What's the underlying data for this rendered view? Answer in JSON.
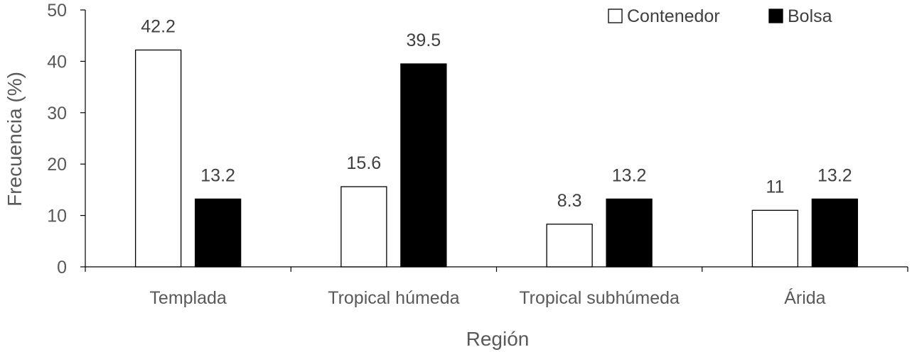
{
  "chart_data": {
    "type": "bar",
    "title": "",
    "xlabel": "Región",
    "ylabel": "Frecuencia (%)",
    "ylim": [
      0,
      50
    ],
    "yticks": [
      0,
      10,
      20,
      30,
      40,
      50
    ],
    "grid": false,
    "legend_position": "top-right",
    "categories": [
      "Templada",
      "Tropical húmeda",
      "Tropical subhúmeda",
      "Árida"
    ],
    "series": [
      {
        "name": "Contenedor",
        "values": [
          42.2,
          15.6,
          8.3,
          11
        ],
        "labels": [
          "42.2",
          "15.6",
          "8.3",
          "11"
        ],
        "color": "#ffffff"
      },
      {
        "name": "Bolsa",
        "values": [
          13.2,
          39.5,
          13.2,
          13.2
        ],
        "labels": [
          "13.2",
          "39.5",
          "13.2",
          "13.2"
        ],
        "color": "#000000"
      }
    ]
  }
}
